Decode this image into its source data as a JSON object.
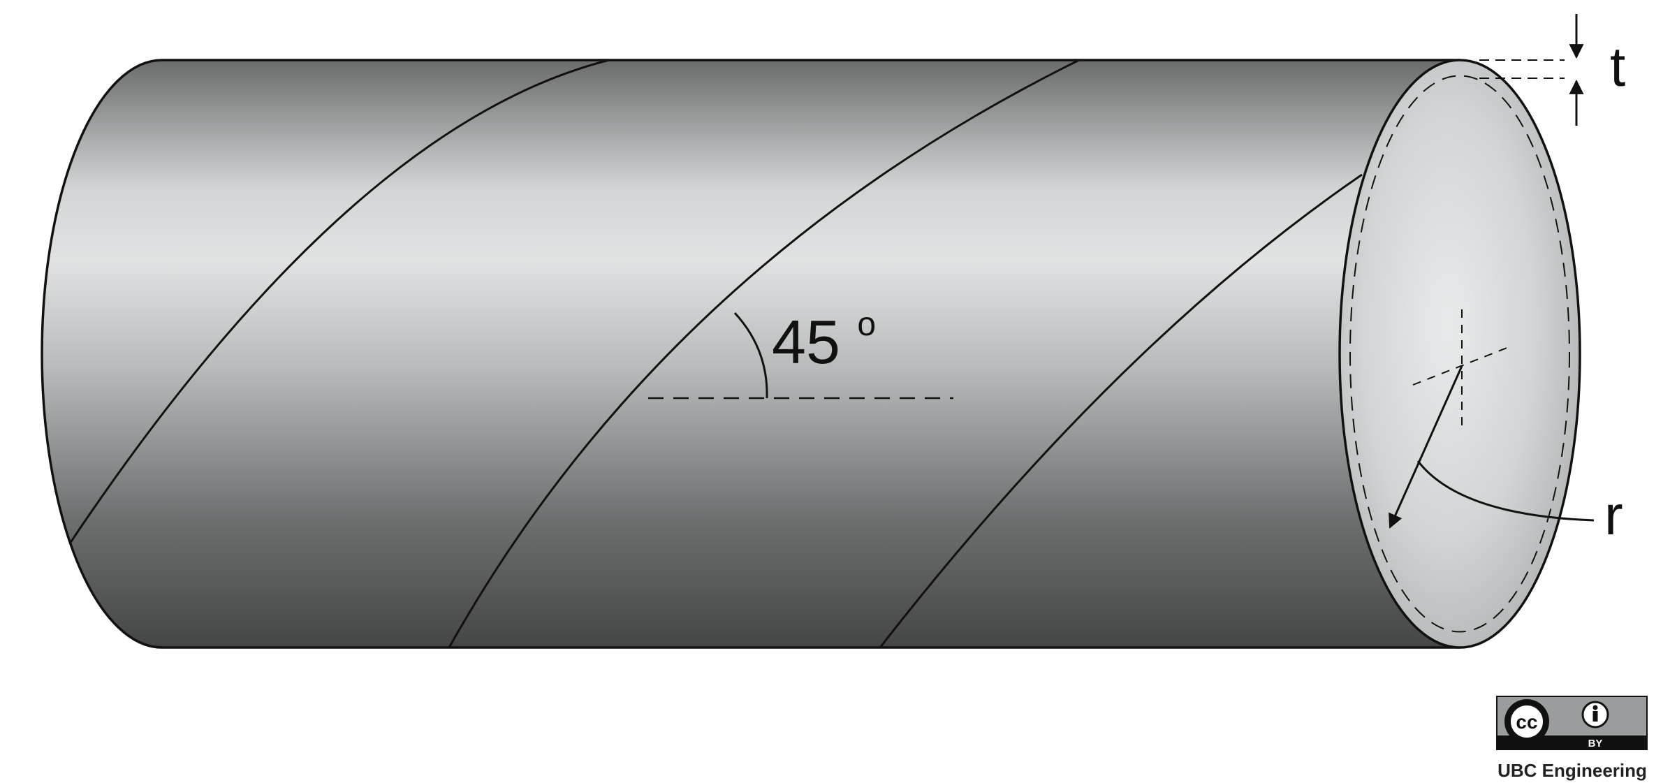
{
  "diagram": {
    "angle_label": "45",
    "angle_unit": "o",
    "thickness_label": "t",
    "radius_label": "r"
  },
  "license": {
    "cc_mark": "cc",
    "by_label": "BY",
    "attribution": "UBC Engineering"
  },
  "colors": {
    "body_dark": "#474848",
    "body_light": "#e0e2e3",
    "end_face_center": "#e8eaeb",
    "end_face_edge": "#b2b5b6",
    "outline": "#111111"
  }
}
